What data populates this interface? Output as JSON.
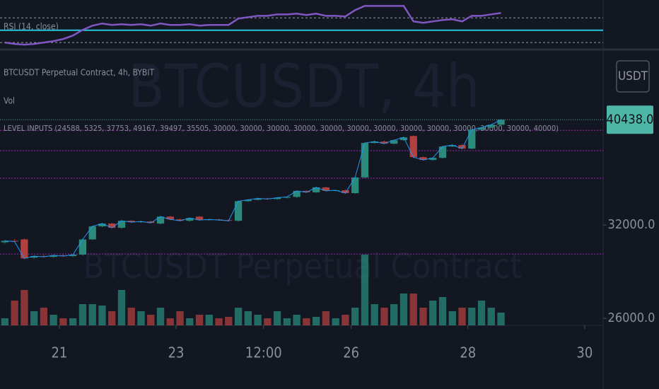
{
  "chart_data": {
    "type": "candlestick",
    "title": "BTCUSDT Perpetual Contract, 4h, BYBIT",
    "watermark": "BTCUSDT, 4h",
    "watermark_subtitle": "BTCUSDT Perpetual Contract",
    "currency": "USDT",
    "volume_label": "Vol",
    "levels_label": "LEVEL INPUTS (24588, 5325, 37753, 49167, 39497, 35505, 30000, 30000, 30000, 30000, 30000, 30000, 30000, 30000, 30000, 30000, 30000, 30000, 40000)",
    "open": [
      30790,
      30890,
      30990,
      29760,
      29860,
      29810,
      29910,
      29860,
      29960,
      30990,
      31900,
      32100,
      31800,
      32300,
      32200,
      32250,
      32100,
      32600,
      32400,
      32300,
      32600,
      32350,
      32400,
      32350,
      32300,
      33740,
      33840,
      33950,
      33900,
      34000,
      34060,
      34520,
      34410,
      34790,
      34520,
      34570,
      34350,
      35570,
      38400,
      38520,
      38340,
      38640,
      39000,
      37210,
      36980,
      37150,
      38100,
      38220,
      37920,
      39550,
      39740,
      39990
    ],
    "high": [
      30950,
      31000,
      31050,
      29900,
      29950,
      29950,
      30000,
      29950,
      31050,
      31950,
      32150,
      32150,
      32350,
      32350,
      32300,
      32300,
      32650,
      32650,
      32450,
      32550,
      32650,
      32400,
      32450,
      32400,
      33800,
      33900,
      34000,
      34000,
      34050,
      34100,
      34550,
      34560,
      34850,
      34830,
      34600,
      34600,
      35600,
      38450,
      38600,
      38600,
      38700,
      38950,
      39050,
      37250,
      37200,
      38150,
      38300,
      38300,
      39600,
      39800,
      40050,
      40500
    ],
    "low": [
      30700,
      30800,
      29650,
      29700,
      29780,
      29760,
      29850,
      29800,
      29900,
      30950,
      31850,
      31750,
      31750,
      32150,
      32150,
      32100,
      32050,
      32350,
      32250,
      32250,
      32300,
      32300,
      32300,
      32250,
      32250,
      33700,
      33800,
      33850,
      33850,
      33950,
      34000,
      34380,
      34380,
      34480,
      34480,
      34300,
      34300,
      35520,
      38350,
      38300,
      38300,
      38600,
      37150,
      36930,
      36930,
      37100,
      38050,
      37880,
      37880,
      39500,
      39700,
      39950
    ],
    "close": [
      30890,
      30840,
      29710,
      29860,
      29810,
      29910,
      29860,
      29960,
      30990,
      31900,
      32100,
      31800,
      32300,
      32200,
      32250,
      32150,
      32600,
      32400,
      32300,
      32500,
      32350,
      32400,
      32350,
      32300,
      33740,
      33840,
      33950,
      33900,
      34000,
      34060,
      34520,
      34410,
      34790,
      34520,
      34570,
      34350,
      35570,
      38400,
      38520,
      38340,
      38640,
      38880,
      37210,
      36980,
      37150,
      38100,
      38220,
      37920,
      39550,
      39740,
      39990,
      40438
    ],
    "volume": [
      10,
      35,
      50,
      20,
      25,
      15,
      10,
      10,
      30,
      30,
      28,
      20,
      50,
      25,
      20,
      15,
      25,
      10,
      20,
      10,
      15,
      15,
      10,
      12,
      25,
      20,
      15,
      10,
      20,
      10,
      15,
      10,
      12,
      20,
      10,
      15,
      25,
      100,
      30,
      25,
      30,
      45,
      45,
      25,
      35,
      40,
      20,
      25,
      25,
      35,
      25,
      18
    ],
    "vlim": [
      0,
      130
    ],
    "up_color": "#2a8a7c",
    "down_color": "#b2403f",
    "ylim": [
      25600,
      46900
    ],
    "log_scale": true,
    "yticks": [
      {
        "value": 26000,
        "label": "26000.0"
      },
      {
        "value": 32000,
        "label": "32000.0"
      }
    ],
    "last_price": {
      "value": 40438,
      "label": "40438.0"
    },
    "last_price_color": "#4db6a6",
    "levels": [
      39497,
      37753,
      35505,
      30000
    ],
    "level_color": "#9c27b0",
    "xlim": [
      -0.5,
      61.5
    ],
    "xticks": [
      {
        "value": 5.6,
        "label": "21"
      },
      {
        "value": 17.6,
        "label": "23"
      },
      {
        "value": 26.6,
        "label": "12:00"
      },
      {
        "value": 35.6,
        "label": "26"
      },
      {
        "value": 47.6,
        "label": "28"
      },
      {
        "value": 59.6,
        "label": "30"
      }
    ],
    "rsi": {
      "name": "RSI (14, close)",
      "color": "#7e57c2",
      "values": [
        30,
        27.7,
        26.6,
        27.7,
        30,
        32.3,
        35.7,
        41.4,
        50.6,
        57.4,
        60.9,
        58.6,
        59.7,
        58.6,
        59.7,
        57.4,
        60.9,
        58.6,
        58.6,
        59.7,
        57.4,
        58.6,
        58.6,
        58.6,
        68.9,
        71.1,
        73.4,
        73.4,
        75.7,
        75.7,
        76.9,
        74.6,
        76.9,
        73.4,
        73.4,
        72.3,
        82.6,
        89.4,
        89.4,
        89.4,
        89.4,
        89.4,
        64.3,
        62,
        64.3,
        66.6,
        67.7,
        64.3,
        73.4,
        73.4,
        75.7,
        78
      ],
      "ylim": [
        21,
        99
      ],
      "bands": [
        30,
        70
      ],
      "mid": 50,
      "mid_color": "#26c6da"
    }
  }
}
